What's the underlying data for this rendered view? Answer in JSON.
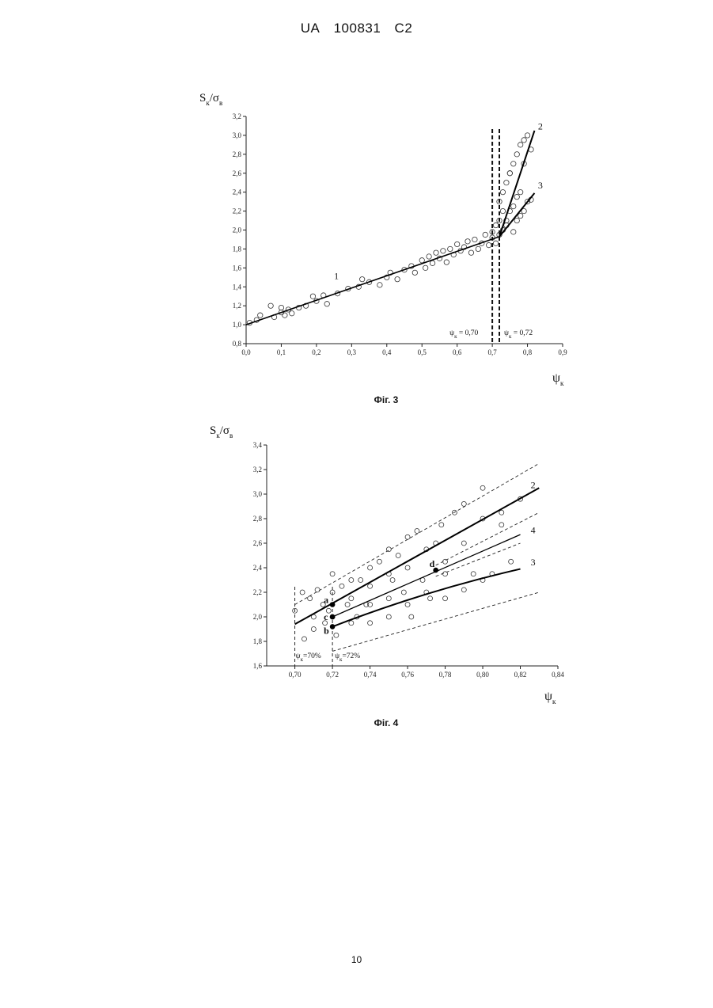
{
  "header": {
    "country": "UA",
    "number": "100831",
    "kind": "C2"
  },
  "page_number": "10",
  "figures": [
    {
      "caption": "Фіг. 3"
    },
    {
      "caption": "Фіг. 4"
    }
  ],
  "chart_data": [
    {
      "type": "scatter",
      "title": "",
      "ylabel": "Sк/σв",
      "xlabel": "ψк",
      "xlim": [
        0.0,
        0.9
      ],
      "ylim": [
        0.8,
        3.2
      ],
      "x_ticks": [
        "0,0",
        "0,1",
        "0,2",
        "0,3",
        "0,4",
        "0,5",
        "0,6",
        "0,7",
        "0,8",
        "0,9"
      ],
      "y_ticks": [
        "0,8",
        "1,0",
        "1,2",
        "1,4",
        "1,6",
        "1,8",
        "2,0",
        "2,2",
        "2,4",
        "2,6",
        "2,8",
        "3,0",
        "3,2"
      ],
      "vertical_lines": [
        {
          "x": 0.7,
          "label": "ψк = 0,70"
        },
        {
          "x": 0.72,
          "label": "ψк = 0,72"
        }
      ],
      "lines": [
        {
          "name": "1",
          "x": [
            0.0,
            0.72
          ],
          "y": [
            1.0,
            1.93
          ]
        },
        {
          "name": "2",
          "x": [
            0.72,
            0.82
          ],
          "y": [
            1.93,
            3.05
          ]
        },
        {
          "name": "3",
          "x": [
            0.72,
            0.82
          ],
          "y": [
            1.93,
            2.39
          ]
        }
      ],
      "points": {
        "x": [
          0.01,
          0.03,
          0.04,
          0.07,
          0.08,
          0.1,
          0.1,
          0.11,
          0.12,
          0.13,
          0.15,
          0.17,
          0.19,
          0.2,
          0.22,
          0.23,
          0.26,
          0.29,
          0.32,
          0.33,
          0.35,
          0.38,
          0.4,
          0.41,
          0.43,
          0.45,
          0.47,
          0.48,
          0.5,
          0.51,
          0.52,
          0.53,
          0.54,
          0.55,
          0.56,
          0.57,
          0.58,
          0.59,
          0.6,
          0.61,
          0.62,
          0.63,
          0.64,
          0.65,
          0.66,
          0.67,
          0.68,
          0.69,
          0.7,
          0.7,
          0.71,
          0.71,
          0.72,
          0.72,
          0.72,
          0.73,
          0.73,
          0.74,
          0.74,
          0.75,
          0.75,
          0.76,
          0.76,
          0.77,
          0.77,
          0.78,
          0.78,
          0.79,
          0.79,
          0.8,
          0.8,
          0.81,
          0.81,
          0.78,
          0.76,
          0.74,
          0.73,
          0.75,
          0.77,
          0.79
        ],
        "y": [
          1.02,
          1.05,
          1.1,
          1.2,
          1.08,
          1.13,
          1.18,
          1.1,
          1.16,
          1.12,
          1.18,
          1.2,
          1.3,
          1.25,
          1.31,
          1.22,
          1.33,
          1.38,
          1.4,
          1.48,
          1.45,
          1.42,
          1.5,
          1.55,
          1.48,
          1.58,
          1.62,
          1.55,
          1.68,
          1.6,
          1.72,
          1.65,
          1.76,
          1.7,
          1.78,
          1.66,
          1.8,
          1.74,
          1.85,
          1.78,
          1.82,
          1.88,
          1.76,
          1.9,
          1.8,
          1.86,
          1.95,
          1.84,
          1.92,
          1.98,
          2.05,
          1.86,
          2.3,
          2.1,
          1.95,
          2.4,
          2.0,
          2.5,
          2.1,
          2.6,
          2.2,
          2.7,
          2.25,
          2.8,
          2.35,
          2.9,
          2.4,
          2.95,
          2.2,
          3.0,
          2.3,
          2.85,
          2.32,
          2.15,
          1.98,
          2.05,
          2.2,
          2.6,
          2.1,
          2.7
        ]
      }
    },
    {
      "type": "scatter",
      "title": "",
      "ylabel": "Sк/σв",
      "xlabel": "ψк",
      "xlim": [
        0.685,
        0.84
      ],
      "ylim": [
        1.6,
        3.4
      ],
      "x_ticks": [
        "0,70",
        "0,72",
        "0,74",
        "0,76",
        "0,78",
        "0,80",
        "0,82",
        "0,84"
      ],
      "y_ticks": [
        "1,6",
        "1,8",
        "2,0",
        "2,2",
        "2,4",
        "2,6",
        "2,8",
        "3,0",
        "3,2",
        "3,4"
      ],
      "vertical_lines": [
        {
          "x": 0.7,
          "label": "ψк=70%"
        },
        {
          "x": 0.72,
          "label": "ψк=72%"
        }
      ],
      "lines": [
        {
          "name": "2",
          "x": [
            0.7,
            0.83
          ],
          "y": [
            1.94,
            3.05
          ]
        },
        {
          "name": "4",
          "x": [
            0.72,
            0.82
          ],
          "y": [
            2.0,
            2.67
          ]
        },
        {
          "name": "3",
          "x": [
            0.72,
            0.82
          ],
          "y": [
            1.92,
            2.39
          ]
        }
      ],
      "bands": [
        {
          "x": [
            0.7,
            0.83
          ],
          "y": [
            2.1,
            3.25
          ]
        },
        {
          "x": [
            0.72,
            0.83
          ],
          "y": [
            1.72,
            2.2
          ]
        },
        {
          "x": [
            0.775,
            0.83
          ],
          "y": [
            2.42,
            2.85
          ]
        },
        {
          "x": [
            0.775,
            0.82
          ],
          "y": [
            2.33,
            2.6
          ]
        }
      ],
      "markers": [
        {
          "label": "a",
          "x": 0.72,
          "y": 2.1
        },
        {
          "label": "c",
          "x": 0.72,
          "y": 2.0
        },
        {
          "label": "b",
          "x": 0.72,
          "y": 1.92
        },
        {
          "label": "d",
          "x": 0.775,
          "y": 2.38
        }
      ],
      "points": {
        "x": [
          0.7,
          0.704,
          0.705,
          0.708,
          0.71,
          0.71,
          0.712,
          0.715,
          0.716,
          0.718,
          0.72,
          0.72,
          0.72,
          0.722,
          0.725,
          0.728,
          0.73,
          0.73,
          0.73,
          0.733,
          0.735,
          0.738,
          0.74,
          0.74,
          0.74,
          0.74,
          0.745,
          0.75,
          0.75,
          0.75,
          0.75,
          0.752,
          0.755,
          0.758,
          0.76,
          0.76,
          0.76,
          0.762,
          0.765,
          0.768,
          0.77,
          0.77,
          0.772,
          0.775,
          0.778,
          0.78,
          0.78,
          0.78,
          0.785,
          0.79,
          0.79,
          0.79,
          0.795,
          0.8,
          0.8,
          0.8,
          0.805,
          0.81,
          0.81,
          0.815,
          0.82
        ],
        "y": [
          2.05,
          2.2,
          1.82,
          2.15,
          2.0,
          1.9,
          2.22,
          2.1,
          1.95,
          2.05,
          2.35,
          2.2,
          2.0,
          1.85,
          2.25,
          2.1,
          2.3,
          2.15,
          1.95,
          2.0,
          2.3,
          2.1,
          2.4,
          2.25,
          2.1,
          1.95,
          2.45,
          2.55,
          2.35,
          2.15,
          2.0,
          2.3,
          2.5,
          2.2,
          2.65,
          2.4,
          2.1,
          2.0,
          2.7,
          2.3,
          2.55,
          2.2,
          2.15,
          2.6,
          2.75,
          2.45,
          2.35,
          2.15,
          2.85,
          2.92,
          2.6,
          2.22,
          2.35,
          3.05,
          2.8,
          2.3,
          2.35,
          2.85,
          2.75,
          2.45,
          2.96
        ]
      }
    }
  ]
}
